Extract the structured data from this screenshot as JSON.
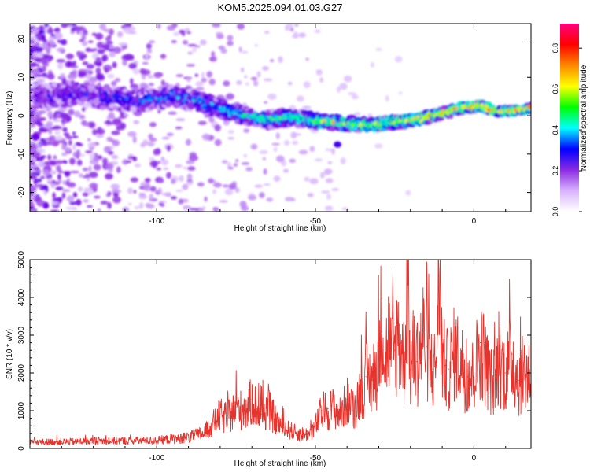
{
  "chart_data": [
    {
      "type": "heatmap",
      "title": "KOM5.2025.094.01.03.G27",
      "xlabel": "Height of straight line (km)",
      "ylabel": "Frequency (Hz)",
      "xlim": [
        -140,
        18
      ],
      "ylim": [
        -25,
        24
      ],
      "xticks": [
        -100,
        -50,
        0
      ],
      "yticks": [
        -20,
        -10,
        0,
        10,
        20
      ],
      "ridge": {
        "x": [
          -135,
          -125,
          -115,
          -105,
          -95,
          -88,
          -80,
          -72,
          -65,
          -58,
          -52,
          -46,
          -40,
          -34,
          -28,
          -22,
          -16,
          -10,
          -4,
          2,
          8,
          14,
          18
        ],
        "y": [
          5,
          6,
          4.5,
          4,
          5,
          4,
          2,
          0,
          -1,
          -0.5,
          -1,
          -1.5,
          -2,
          -2.5,
          -2,
          -1.5,
          -0.5,
          0.5,
          2,
          2.5,
          1,
          1.5,
          2
        ]
      },
      "colorbar": {
        "label": "Normalized spectral amplitude",
        "range": [
          0,
          0.92
        ],
        "ticks": [
          "0.0",
          "0.2",
          "0.4",
          "0.6",
          "0.8"
        ],
        "colors": [
          "#ffffff",
          "#d9b3ff",
          "#8a2be2",
          "#0000ff",
          "#00ffff",
          "#00ff00",
          "#ffff00",
          "#ff8800",
          "#ff0000",
          "#ff0080"
        ]
      },
      "grid": false
    },
    {
      "type": "line",
      "xlabel": "Height of straight line (km)",
      "ylabel": "SNR (10 * v/v)",
      "xlim": [
        -140,
        18
      ],
      "ylim": [
        0,
        5000
      ],
      "xticks": [
        -100,
        -50,
        0
      ],
      "yticks": [
        0,
        1000,
        2000,
        3000,
        4000,
        5000
      ],
      "series": [
        {
          "color": "#e8322c",
          "x": [
            -140,
            -130,
            -120,
            -110,
            -100,
            -95,
            -90,
            -85,
            -82,
            -80,
            -78,
            -75,
            -72,
            -70,
            -67,
            -65,
            -62,
            -60,
            -57,
            -55,
            -52,
            -50,
            -48,
            -46,
            -44,
            -42,
            -40,
            -38,
            -36,
            -34,
            -32,
            -30,
            -29,
            -28,
            -27,
            -26,
            -25,
            -24,
            -23,
            -22,
            -21,
            -20,
            -19,
            -18,
            -17,
            -16,
            -15,
            -14,
            -13,
            -12,
            -11,
            -10,
            -9,
            -8,
            -6,
            -4,
            -2,
            0,
            2,
            4,
            6,
            8,
            10,
            12,
            14,
            16,
            18
          ],
          "y": [
            170,
            180,
            200,
            210,
            220,
            260,
            300,
            420,
            700,
            900,
            800,
            1100,
            1000,
            1300,
            900,
            1100,
            700,
            550,
            450,
            400,
            380,
            600,
            1000,
            1050,
            1100,
            900,
            1300,
            1000,
            1500,
            1900,
            1800,
            2400,
            3900,
            2200,
            3100,
            2400,
            2600,
            3100,
            2800,
            2300,
            4500,
            2100,
            2600,
            2300,
            2600,
            3100,
            2700,
            2400,
            2100,
            2200,
            5000,
            2500,
            2200,
            2100,
            2600,
            2300,
            1900,
            2000,
            2800,
            2200,
            1700,
            2400,
            2000,
            2500,
            1800,
            2100,
            2000
          ]
        }
      ],
      "grid": false
    }
  ]
}
